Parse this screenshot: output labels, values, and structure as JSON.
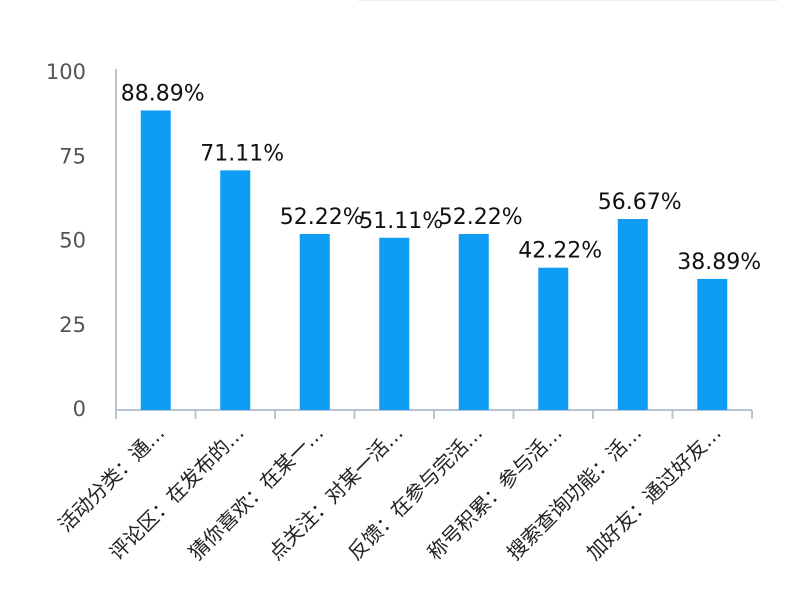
{
  "colors": {
    "bar": "#0f9cf5",
    "axis": "#b8c4d4",
    "tick_text": "#555555"
  },
  "chart_data": {
    "type": "bar",
    "title": "",
    "xlabel": "",
    "ylabel": "",
    "ylim": [
      0,
      100
    ],
    "yticks": [
      0,
      25,
      50,
      75,
      100
    ],
    "grid": false,
    "categories": [
      "活动分类：通…",
      "评论区：在发布的…",
      "猜你喜欢：在某一…",
      "点关注：对某一活…",
      "反馈：在参与完活…",
      "称号积累：参与活…",
      "搜索查询功能：活…",
      "加好友：通过好友…"
    ],
    "values": [
      88.89,
      71.11,
      52.22,
      51.11,
      52.22,
      42.22,
      56.67,
      38.89
    ],
    "data_labels": [
      "88.89%",
      "71.11%",
      "52.22%",
      "51.11%",
      "52.22%",
      "42.22%",
      "56.67%",
      "38.89%"
    ]
  }
}
